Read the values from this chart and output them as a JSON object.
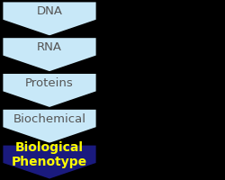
{
  "labels": [
    "DNA",
    "RNA",
    "Proteins",
    "Biochemical",
    "Biological\nPhenotype"
  ],
  "light_color": "#c8e8f8",
  "dark_color": "#1a1a7e",
  "text_colors": [
    "#555555",
    "#555555",
    "#555555",
    "#555555",
    "#ffff00"
  ],
  "background_color": "#000000",
  "font_sizes": [
    9.5,
    9.5,
    9.5,
    9.5,
    10
  ],
  "bold": [
    false,
    false,
    false,
    false,
    true
  ],
  "n_arrows": 5,
  "fig_width": 2.5,
  "fig_height": 2.01
}
